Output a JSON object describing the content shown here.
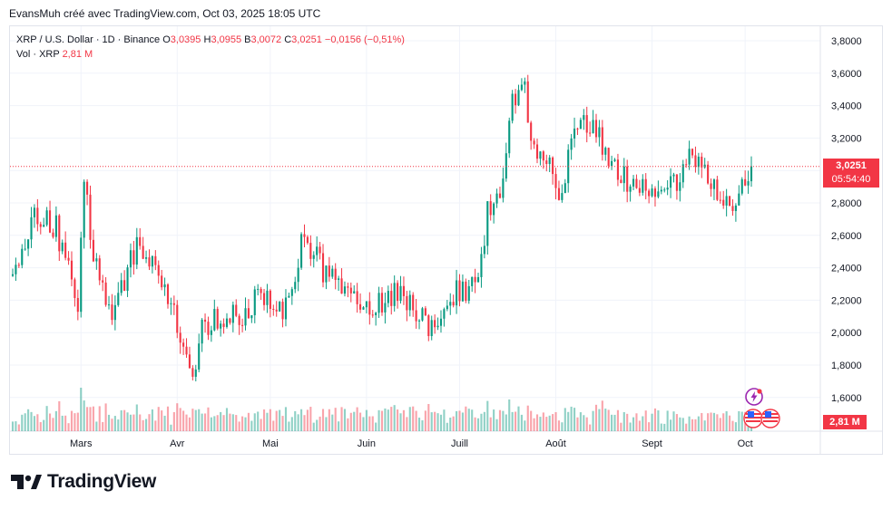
{
  "caption": "EvansMuh créé avec TradingView.com, Oct 03, 2025 18:05 UTC",
  "legend": {
    "symbol": "XRP / U.S. Dollar · 1D · Binance",
    "o_label": "O",
    "o_value": "3,0395",
    "h_label": "H",
    "h_value": "3,0955",
    "b_label": "B",
    "b_value": "3,0072",
    "c_label": "C",
    "c_value": "3,0251",
    "change": "−0,0156 (−0,51%)",
    "vol_label": "Vol · XRP",
    "vol_value": "2,81 M"
  },
  "last_price": {
    "price": "3,0251",
    "countdown": "05:54:40",
    "volume": "2,81 M"
  },
  "brand": "TradingView",
  "colors": {
    "up": "#089981",
    "down": "#f23645",
    "grid": "#f0f3fa",
    "axis_text": "#131722"
  },
  "icons": [
    "lightning-event-icon",
    "us-flag-event-icon"
  ],
  "chart_data": {
    "type": "candlestick",
    "symbol": "XRPUSD",
    "timeframe": "1D",
    "x_range": [
      "2025-02-07",
      "2025-10-03"
    ],
    "ylim": [
      1.5,
      3.9
    ],
    "y_ticks": [
      "3,8000",
      "3,6000",
      "3,4000",
      "3,2000",
      "3,0000",
      "2,8000",
      "2,6000",
      "2,4000",
      "2,2000",
      "2,0000",
      "1,8000",
      "1,6000"
    ],
    "y_tick_values": [
      3.8,
      3.6,
      3.4,
      3.2,
      3.0,
      2.8,
      2.6,
      2.4,
      2.2,
      2.0,
      1.8,
      1.6
    ],
    "x_ticks": [
      "Mars",
      "Avr",
      "Mai",
      "Juin",
      "Juill",
      "Août",
      "Sept",
      "Oct"
    ],
    "x_tick_dates": [
      "2025-03-01",
      "2025-04-01",
      "2025-05-01",
      "2025-06-01",
      "2025-07-01",
      "2025-08-01",
      "2025-09-01",
      "2025-10-01"
    ],
    "grid": true,
    "last_close": 3.0251,
    "close_path": [
      [
        "2025-02-07",
        2.35
      ],
      [
        "2025-02-14",
        2.75
      ],
      [
        "2025-02-21",
        2.65
      ],
      [
        "2025-02-28",
        2.15
      ],
      [
        "2025-03-02",
        2.95
      ],
      [
        "2025-03-05",
        2.45
      ],
      [
        "2025-03-11",
        2.1
      ],
      [
        "2025-03-19",
        2.55
      ],
      [
        "2025-03-24",
        2.45
      ],
      [
        "2025-03-31",
        2.1
      ],
      [
        "2025-04-07",
        1.75
      ],
      [
        "2025-04-09",
        2.05
      ],
      [
        "2025-04-21",
        2.1
      ],
      [
        "2025-04-28",
        2.25
      ],
      [
        "2025-05-05",
        2.1
      ],
      [
        "2025-05-12",
        2.6
      ],
      [
        "2025-05-19",
        2.35
      ],
      [
        "2025-05-26",
        2.3
      ],
      [
        "2025-06-02",
        2.15
      ],
      [
        "2025-06-12",
        2.25
      ],
      [
        "2025-06-22",
        2.0
      ],
      [
        "2025-06-30",
        2.25
      ],
      [
        "2025-07-07",
        2.3
      ],
      [
        "2025-07-10",
        2.75
      ],
      [
        "2025-07-15",
        2.95
      ],
      [
        "2025-07-18",
        3.45
      ],
      [
        "2025-07-22",
        3.55
      ],
      [
        "2025-07-24",
        3.15
      ],
      [
        "2025-07-29",
        3.1
      ],
      [
        "2025-08-02",
        2.8
      ],
      [
        "2025-08-08",
        3.3
      ],
      [
        "2025-08-14",
        3.25
      ],
      [
        "2025-08-18",
        3.05
      ],
      [
        "2025-08-26",
        2.9
      ],
      [
        "2025-09-02",
        2.85
      ],
      [
        "2025-09-09",
        2.95
      ],
      [
        "2025-09-14",
        3.1
      ],
      [
        "2025-09-18",
        3.05
      ],
      [
        "2025-09-22",
        2.85
      ],
      [
        "2025-09-26",
        2.8
      ],
      [
        "2025-10-01",
        2.95
      ],
      [
        "2025-10-03",
        3.0251
      ]
    ],
    "volume_unit": "XRP",
    "last_volume": "2,81 M"
  }
}
